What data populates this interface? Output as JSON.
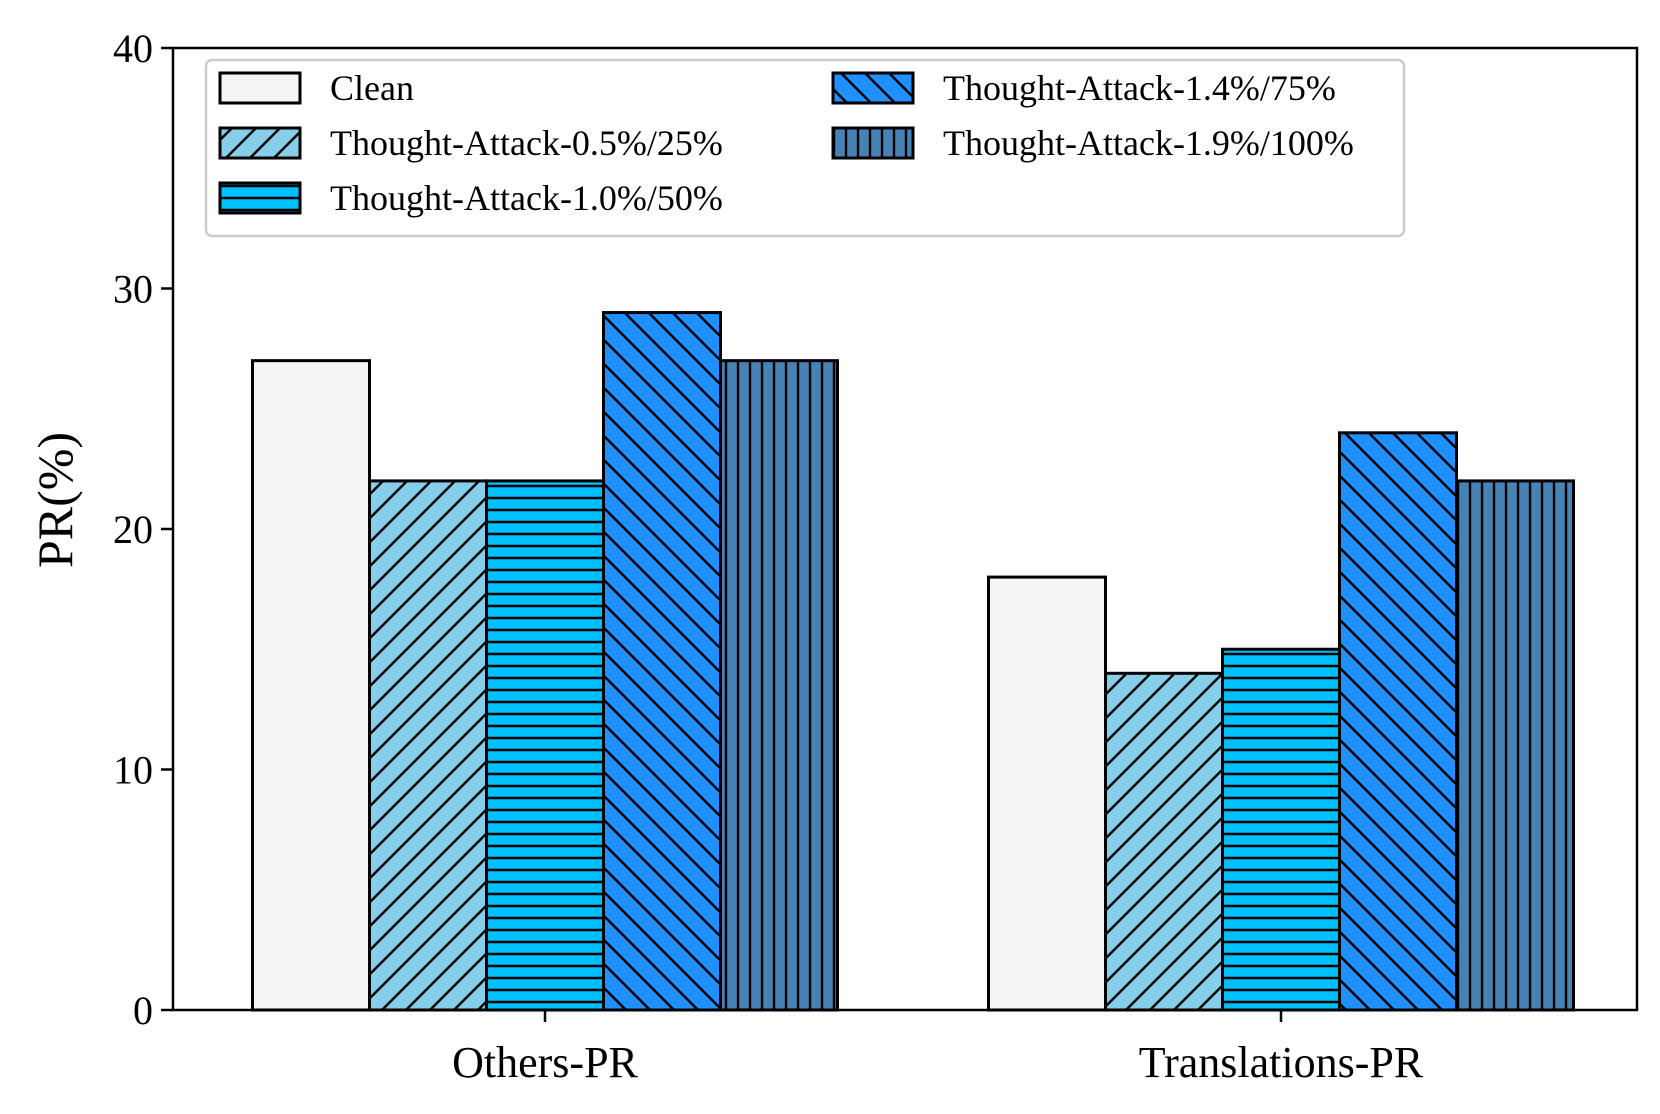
{
  "chart_data": {
    "type": "bar",
    "title": "",
    "xlabel": "",
    "ylabel": "PR(%)",
    "ylim": [
      0,
      40
    ],
    "yticks": [
      0,
      10,
      20,
      30,
      40
    ],
    "grid": false,
    "legend_position": "top",
    "categories": [
      "Others-PR",
      "Translations-PR"
    ],
    "series": [
      {
        "name": "Clean",
        "values": [
          27,
          18
        ],
        "color": "#f5f5f5",
        "hatch": "none"
      },
      {
        "name": "Thought-Attack-0.5%/25%",
        "values": [
          22,
          14
        ],
        "color": "#87ceeb",
        "hatch": "forward-diagonal"
      },
      {
        "name": "Thought-Attack-1.0%/50%",
        "values": [
          22,
          15
        ],
        "color": "#00bfff",
        "hatch": "horizontal"
      },
      {
        "name": "Thought-Attack-1.4%/75%",
        "values": [
          29,
          24
        ],
        "color": "#1e90ff",
        "hatch": "backward-diagonal"
      },
      {
        "name": "Thought-Attack-1.9%/100%",
        "values": [
          27,
          22
        ],
        "color": "#4682b4",
        "hatch": "vertical"
      }
    ]
  }
}
